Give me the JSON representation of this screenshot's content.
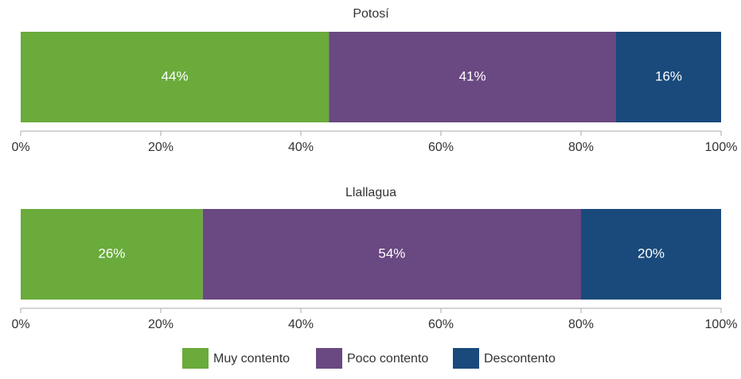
{
  "chart_data": {
    "type": "stacked_barh",
    "categories": [
      "Potosí",
      "Llallagua"
    ],
    "series": [
      {
        "name": "Muy contento",
        "color": "#6aab3b",
        "values": [
          44,
          26
        ],
        "value_labels": [
          "44%",
          "26%"
        ]
      },
      {
        "name": "Poco contento",
        "color": "#6a4881",
        "values": [
          41,
          54
        ],
        "value_labels": [
          "41%",
          "54%"
        ]
      },
      {
        "name": "Descontento",
        "color": "#194a7b",
        "values": [
          16,
          20
        ],
        "value_labels": [
          "16%",
          "20%"
        ]
      }
    ],
    "xlim": [
      0,
      100
    ],
    "xticks": [
      {
        "value": 0,
        "label": "0%"
      },
      {
        "value": 20,
        "label": "20%"
      },
      {
        "value": 40,
        "label": "40%"
      },
      {
        "value": 60,
        "label": "60%"
      },
      {
        "value": 80,
        "label": "80%"
      },
      {
        "value": 100,
        "label": "100%"
      }
    ],
    "legend": "bottom"
  }
}
